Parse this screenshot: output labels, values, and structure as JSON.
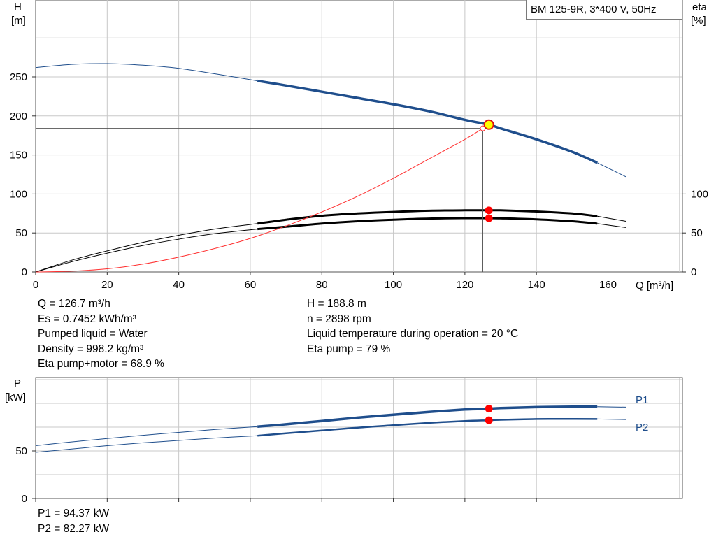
{
  "title": "BM 125-9R, 3*400 V, 50Hz",
  "chart_data": [
    {
      "type": "line",
      "name": "pump-curve",
      "ylabel": "H",
      "yunit": "[m]",
      "y2label": "eta",
      "y2unit": "[%]",
      "xlabel": "Q [m³/h]",
      "xlim": [
        0,
        180
      ],
      "ylim": [
        0,
        300
      ],
      "y2lim": [
        0,
        300
      ],
      "xticks": [
        0,
        20,
        40,
        60,
        80,
        100,
        120,
        140,
        160
      ],
      "yticks": [
        0,
        50,
        100,
        150,
        200,
        250
      ],
      "y2ticks": [
        0,
        50,
        100
      ],
      "grid": true,
      "series": [
        {
          "key": "head_thin",
          "x": [
            0,
            10,
            20,
            30,
            40,
            50,
            62
          ],
          "y": [
            262,
            266,
            267,
            265,
            261,
            254,
            245
          ]
        },
        {
          "key": "head_bold",
          "x": [
            62,
            70,
            80,
            90,
            100,
            110,
            120,
            126.7,
            130,
            140,
            150,
            157
          ],
          "y": [
            245,
            239,
            231,
            223,
            215,
            206,
            195,
            188.8,
            184,
            170,
            154,
            140
          ]
        },
        {
          "key": "head_thin_end",
          "x": [
            157,
            165
          ],
          "y": [
            140,
            122
          ]
        },
        {
          "key": "eta_pump_thin",
          "x": [
            0,
            10,
            20,
            30,
            40,
            50,
            62
          ],
          "y": [
            0,
            15,
            27,
            38,
            47,
            55,
            62
          ]
        },
        {
          "key": "eta_pump_bold",
          "x": [
            62,
            70,
            80,
            90,
            100,
            110,
            120,
            126.7,
            130,
            140,
            150,
            157
          ],
          "y": [
            62,
            67,
            72,
            75,
            77,
            78.5,
            79,
            79,
            79,
            77.5,
            75,
            71.5
          ]
        },
        {
          "key": "eta_pump_thin_end",
          "x": [
            157,
            165
          ],
          "y": [
            71.5,
            65
          ]
        },
        {
          "key": "eta_total_thin",
          "x": [
            0,
            10,
            20,
            30,
            40,
            50,
            62
          ],
          "y": [
            0,
            13,
            24,
            34,
            42,
            49,
            55
          ]
        },
        {
          "key": "eta_total_bold",
          "x": [
            62,
            70,
            80,
            90,
            100,
            110,
            120,
            126.7,
            130,
            140,
            150,
            157
          ],
          "y": [
            55,
            58,
            62,
            65,
            67,
            68.5,
            69,
            68.9,
            68.8,
            67.5,
            65,
            62
          ]
        },
        {
          "key": "eta_total_thin_end",
          "x": [
            157,
            165
          ],
          "y": [
            62,
            57
          ]
        },
        {
          "key": "system_curve",
          "x": [
            0,
            10,
            20,
            30,
            40,
            50,
            60,
            70,
            80,
            90,
            100,
            110,
            120,
            125
          ],
          "y": [
            0,
            1,
            4,
            10,
            19,
            30,
            43,
            59,
            77,
            97,
            120,
            145,
            170,
            184
          ]
        }
      ],
      "operating_point": {
        "Q": 126.7,
        "H": 188.8,
        "eta_pump": 79,
        "eta_total": 68.9
      },
      "duty_point": {
        "Q": 125,
        "H": 184
      }
    },
    {
      "type": "line",
      "name": "power-curve",
      "ylabel": "P",
      "yunit": "[kW]",
      "xlim": [
        0,
        180
      ],
      "ylim": [
        0,
        120
      ],
      "yticks": [
        0,
        50
      ],
      "grid": true,
      "series": [
        {
          "key": "p1_thin",
          "name": "P1",
          "x": [
            0,
            10,
            20,
            30,
            40,
            50,
            62
          ],
          "y": [
            55.5,
            59.5,
            63,
            66.5,
            69.5,
            72.5,
            75.5
          ]
        },
        {
          "key": "p1_bold",
          "x": [
            62,
            70,
            80,
            90,
            100,
            110,
            120,
            126.7,
            130,
            140,
            150,
            157
          ],
          "y": [
            75.5,
            78,
            81.5,
            85,
            88,
            91,
            93.5,
            94.37,
            95,
            96,
            96.5,
            96.5
          ]
        },
        {
          "key": "p1_thin_end",
          "x": [
            157,
            165
          ],
          "y": [
            96.5,
            96
          ]
        },
        {
          "key": "p2_thin",
          "name": "P2",
          "x": [
            0,
            10,
            20,
            30,
            40,
            50,
            62
          ],
          "y": [
            48.5,
            52,
            55.5,
            58.5,
            61,
            63.5,
            66
          ]
        },
        {
          "key": "p2_bold",
          "x": [
            62,
            70,
            80,
            90,
            100,
            110,
            120,
            126.7,
            130,
            140,
            150,
            157
          ],
          "y": [
            66,
            68.5,
            71.5,
            74.5,
            77,
            79.5,
            81.5,
            82.27,
            82.7,
            83.5,
            83.7,
            83.5
          ]
        },
        {
          "key": "p2_thin_end",
          "x": [
            157,
            165
          ],
          "y": [
            83.5,
            83
          ]
        }
      ],
      "operating_point": {
        "Q": 126.7,
        "P1": 94.37,
        "P2": 82.27
      }
    }
  ],
  "info_left": [
    "Q = 126.7 m³/h",
    "Es = 0.7452 kWh/m³",
    "Pumped liquid = Water",
    "Density = 998.2 kg/m³",
    "Eta pump+motor = 68.9 %"
  ],
  "info_right": [
    "H = 188.8 m",
    "n = 2898 rpm",
    "Liquid temperature during operation = 20 °C",
    "Eta pump = 79 %"
  ],
  "info_bottom": [
    "P1 = 94.37 kW",
    "P2 = 82.27 kW"
  ],
  "colors": {
    "curve_blue": "#1f4e8c",
    "eta_black": "#000000",
    "system_red": "#ff3030",
    "op_point_fill": "#ffff00",
    "op_point_stroke": "#e01010",
    "marker_red": "#ff0000",
    "grid": "#c8c8c8",
    "axis": "#333333"
  }
}
